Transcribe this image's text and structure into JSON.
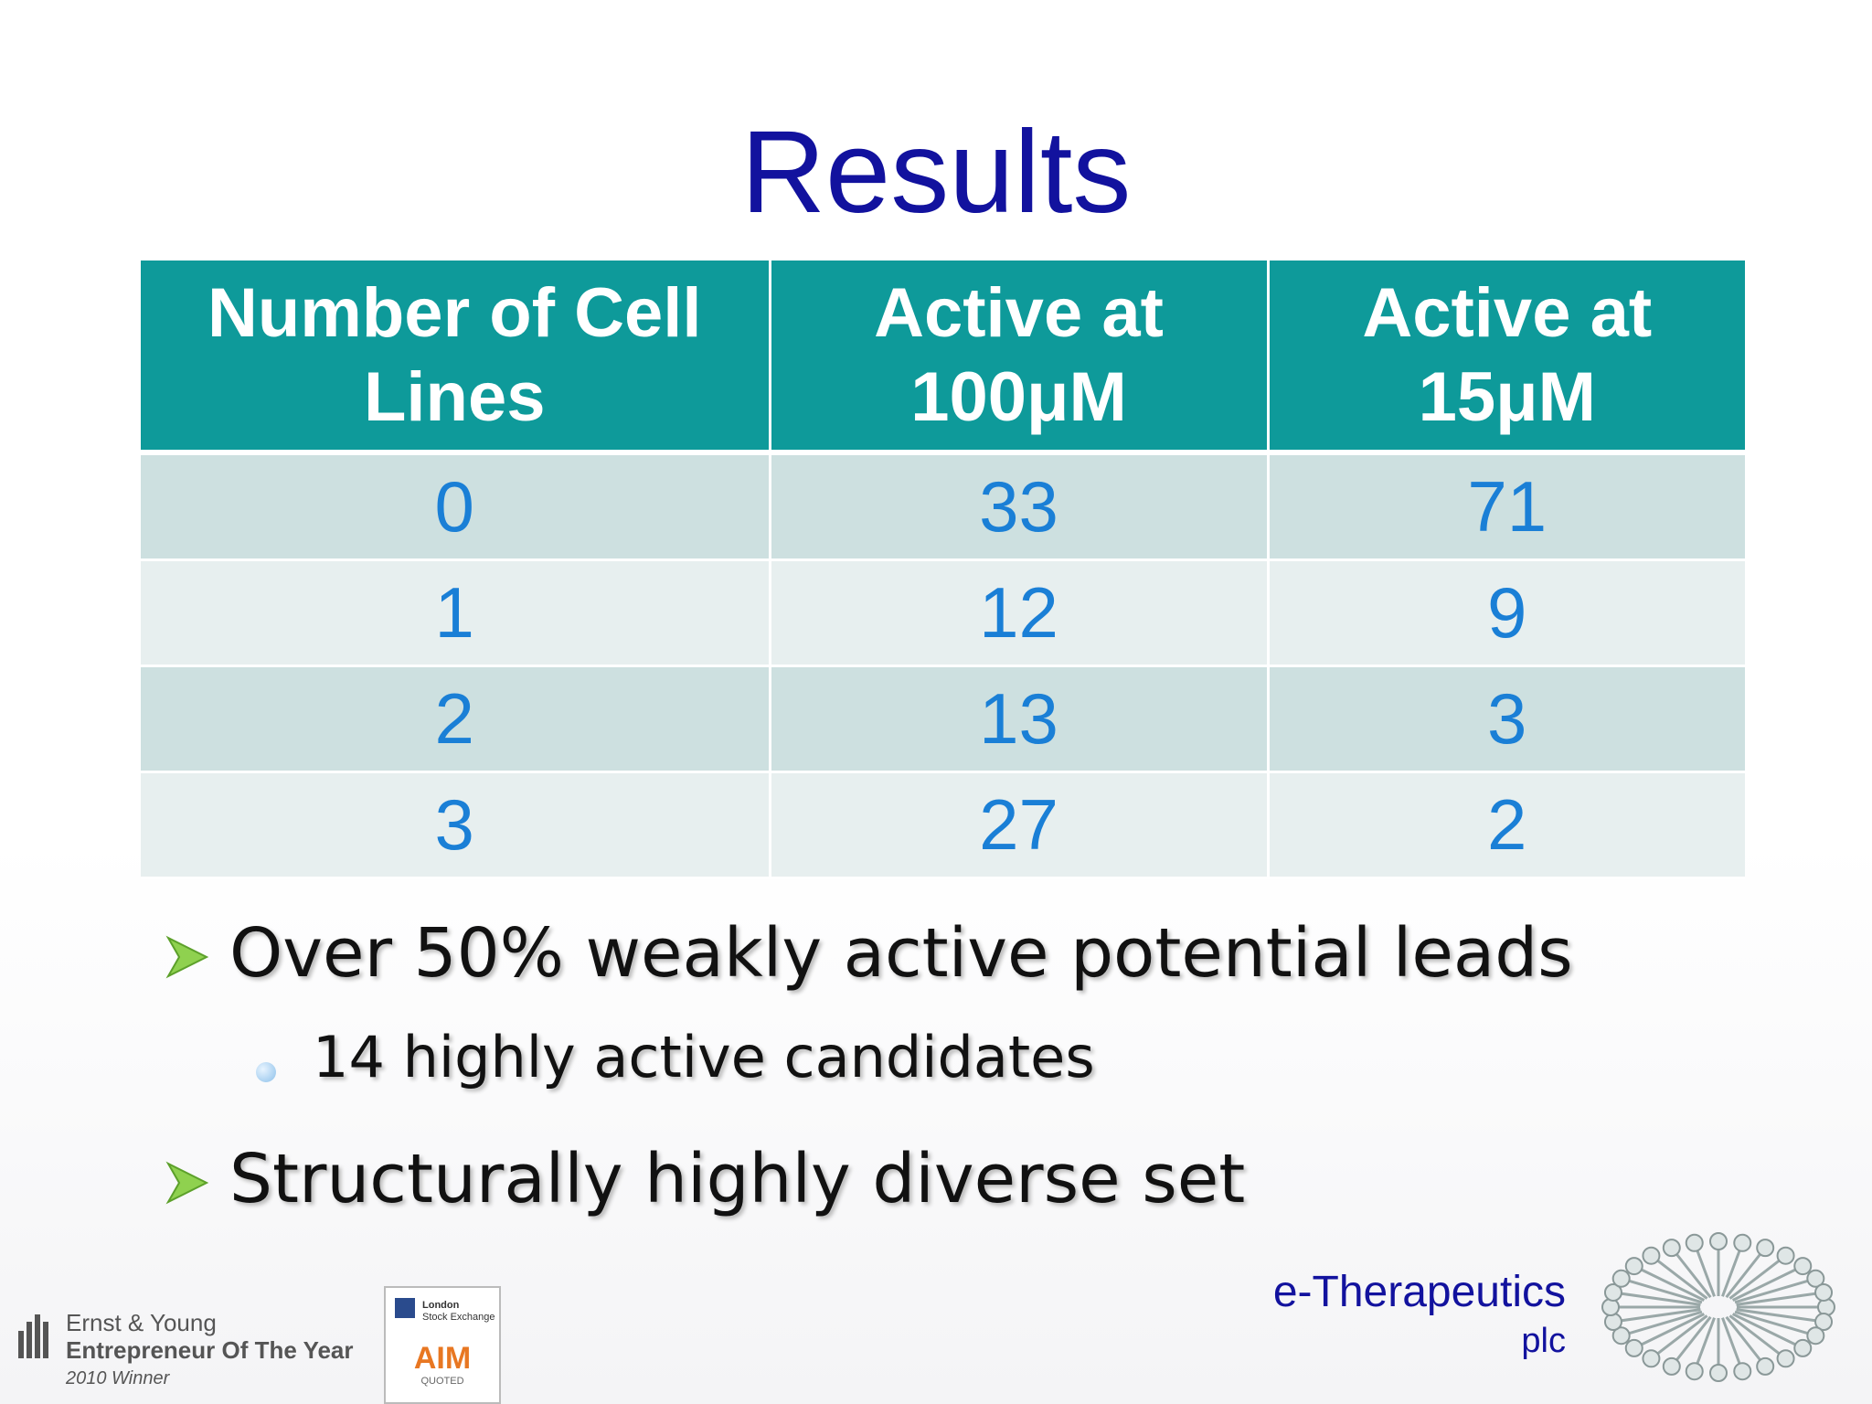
{
  "title": "Results",
  "table": {
    "header": [
      "Number of Cell Lines",
      "Active at 100μM",
      "Active at 15μM"
    ],
    "rows": [
      [
        0,
        33,
        71
      ],
      [
        1,
        12,
        9
      ],
      [
        2,
        13,
        3
      ],
      [
        3,
        27,
        2
      ]
    ]
  },
  "bullets": [
    {
      "text": "Over 50% weakly active potential leads",
      "sub": [
        "14 highly active candidates"
      ]
    },
    {
      "text": "Structurally highly diverse set",
      "sub": []
    }
  ],
  "footer": {
    "award_line1": "Ernst & Young",
    "award_line2": "Entrepreneur Of The Year",
    "award_line3": "2010 Winner",
    "exchange_line1": "London",
    "exchange_line2": "Stock Exchange",
    "aim": "AIM",
    "aim_sub": "QUOTED",
    "company": "e-Therapeutics",
    "company_suffix": "plc"
  }
}
